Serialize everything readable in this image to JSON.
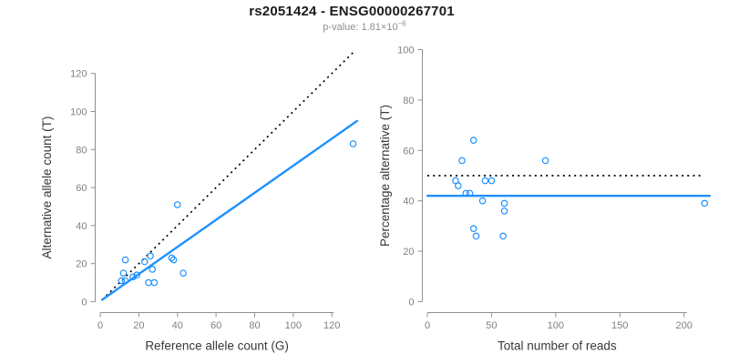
{
  "header": {
    "title": "rs2051424 - ENSG00000267701",
    "p_value_prefix": "p-value: 1.81×10",
    "p_value_exponent": "−6"
  },
  "colors": {
    "accent_blue": "#1E90FF",
    "identity_black": "#000000",
    "axis_stroke": "#909090",
    "tick_text": "#808080",
    "axis_label_text": "#383838",
    "title_text": "#1c1c1c",
    "subtitle_text": "#8e8e8e"
  },
  "chart_data": [
    {
      "type": "scatter",
      "title": "",
      "xlabel": "Reference allele count (G)",
      "ylabel": "Alternative allele count (T)",
      "xlim": [
        0,
        135
      ],
      "ylim": [
        0,
        133
      ],
      "xticks": [
        0,
        20,
        40,
        60,
        80,
        100,
        120
      ],
      "yticks": [
        0,
        20,
        40,
        60,
        80,
        100,
        120
      ],
      "grid": false,
      "legend": null,
      "points": [
        [
          11,
          11
        ],
        [
          13,
          11
        ],
        [
          12,
          15
        ],
        [
          17,
          13
        ],
        [
          19,
          14
        ],
        [
          13,
          22
        ],
        [
          25,
          10
        ],
        [
          28,
          10
        ],
        [
          27,
          17
        ],
        [
          23,
          21
        ],
        [
          26,
          24
        ],
        [
          43,
          15
        ],
        [
          37,
          23
        ],
        [
          38,
          22
        ],
        [
          40,
          51
        ],
        [
          131,
          83
        ]
      ],
      "lines": [
        {
          "name": "identity-line",
          "style": "dotted",
          "color": "#000000",
          "points": [
            [
              1,
              1
            ],
            [
              131,
              131
            ]
          ]
        },
        {
          "name": "fit-line",
          "style": "solid",
          "color": "#1E90FF",
          "points": [
            [
              1,
              1
            ],
            [
              133,
              95
            ]
          ]
        }
      ]
    },
    {
      "type": "scatter",
      "title": "",
      "xlabel": "Total number of reads",
      "ylabel": "Percentage alternative (T)",
      "xlim": [
        0,
        218
      ],
      "ylim": [
        0,
        100
      ],
      "xticks": [
        0,
        50,
        100,
        150,
        200
      ],
      "yticks": [
        0,
        20,
        40,
        60,
        80,
        100
      ],
      "grid": false,
      "legend": null,
      "points": [
        [
          22,
          48
        ],
        [
          24,
          46
        ],
        [
          27,
          56
        ],
        [
          30,
          43
        ],
        [
          33,
          43
        ],
        [
          36,
          64
        ],
        [
          36,
          29
        ],
        [
          38,
          26
        ],
        [
          43,
          40
        ],
        [
          45,
          48
        ],
        [
          50,
          48
        ],
        [
          59,
          26
        ],
        [
          60,
          39
        ],
        [
          60,
          36
        ],
        [
          92,
          56
        ],
        [
          216,
          39
        ]
      ],
      "lines": [
        {
          "name": "expected-50pct-line",
          "style": "dotted",
          "color": "#000000",
          "points": [
            [
              0,
              50
            ],
            [
              214,
              50
            ]
          ]
        },
        {
          "name": "fit-line",
          "style": "solid",
          "color": "#1E90FF",
          "points": [
            [
              0,
              42
            ],
            [
              220,
              42
            ]
          ]
        }
      ]
    }
  ]
}
